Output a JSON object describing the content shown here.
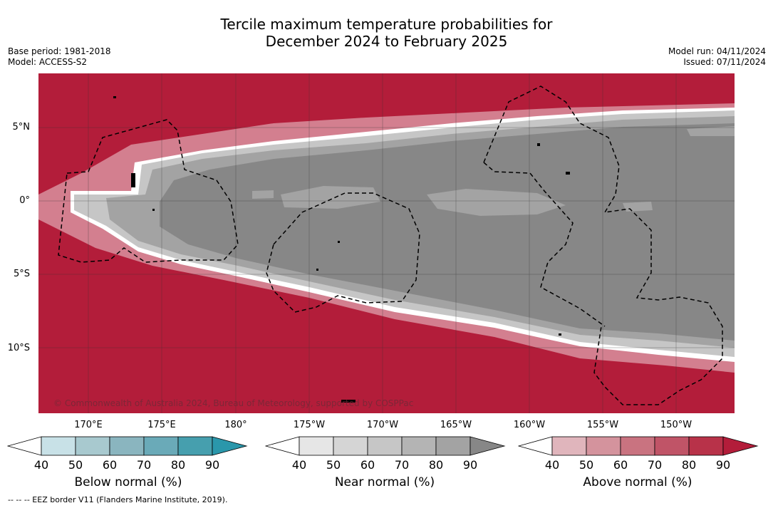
{
  "title": {
    "line1": "Tercile maximum temperature probabilities for",
    "line2": "December 2024 to February 2025"
  },
  "meta": {
    "base_period": "Base period: 1981-2018",
    "model": "Model: ACCESS-S2",
    "model_run": "Model run: 04/11/2024",
    "issued": "Issued: 07/11/2024"
  },
  "map": {
    "lat_labels": [
      "5°N",
      "0°",
      "5°S",
      "10°S"
    ],
    "lon_labels": [
      "170°E",
      "175°E",
      "180°",
      "175°W",
      "170°W",
      "165°W",
      "160°W",
      "155°W",
      "150°W"
    ],
    "copyright": "© Commonwealth of Australia 2024, Bureau of Meteorology, supported by COSPPac",
    "dominant_category": "Above normal (90%) outside the equatorial near-normal band",
    "colors": {
      "above_90": "#b31d3a",
      "near_90": "#878787",
      "near_60": "#a3a3a3",
      "near_50": "#c6c6c6"
    }
  },
  "legend": {
    "ticks": [
      "40",
      "50",
      "60",
      "70",
      "80",
      "90"
    ],
    "below": {
      "label": "Below normal (%)",
      "colors": [
        "#ffffff",
        "#c8e1e7",
        "#a8c9cf",
        "#8ab5bf",
        "#6aaab8",
        "#469fae",
        "#2a97ab"
      ]
    },
    "near": {
      "label": "Near normal (%)",
      "colors": [
        "#ffffff",
        "#e6e6e6",
        "#d5d5d5",
        "#c6c6c6",
        "#b4b4b4",
        "#a3a3a3",
        "#878787"
      ]
    },
    "above": {
      "label": "Above normal (%)",
      "colors": [
        "#ffffff",
        "#e0b5bc",
        "#d4939d",
        "#c97380",
        "#c05467",
        "#b83249",
        "#b31d3a"
      ]
    }
  },
  "footnote": "--  --  -- EEZ border V11 (Flanders Marine Institute, 2019)."
}
